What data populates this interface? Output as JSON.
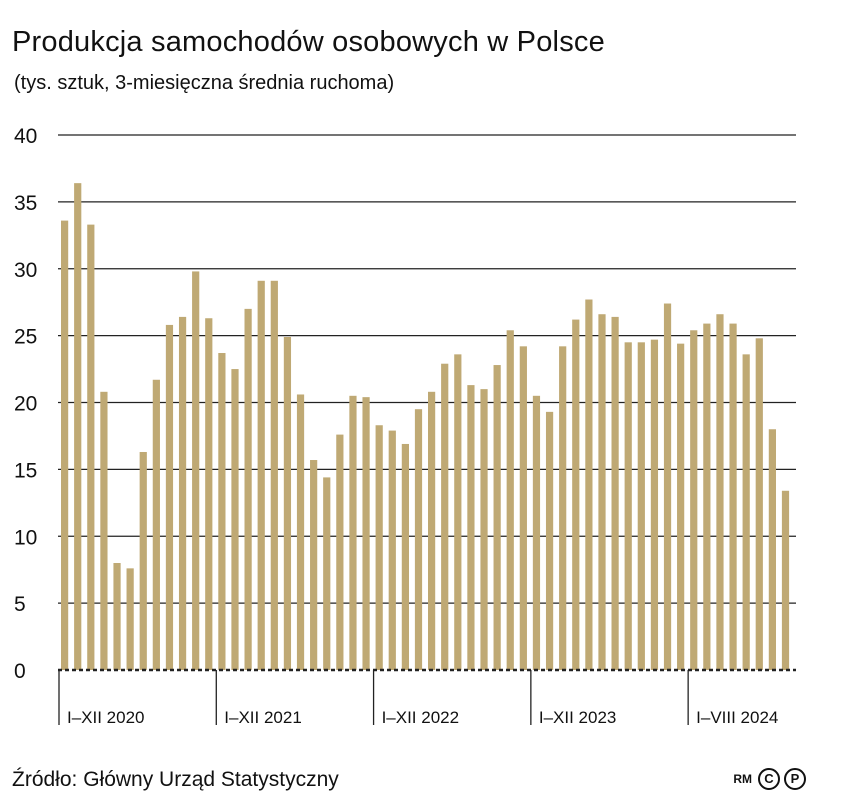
{
  "title": "Produkcja samochodów osobowych w Polsce",
  "subtitle": "(tys. sztuk, 3-miesięczna średnia ruchoma)",
  "source": "Źródło: Główny Urząd Statystyczny",
  "logo": {
    "rm": "RM",
    "c": "C",
    "p": "P"
  },
  "colors": {
    "bar": "#BFA974",
    "grid": "#222222",
    "text": "#111111"
  },
  "chart_data": {
    "type": "bar",
    "ylim": [
      0,
      40
    ],
    "yticks": [
      0,
      5,
      10,
      15,
      20,
      25,
      30,
      35,
      40
    ],
    "grid": true,
    "groups": [
      {
        "label": "I–XII 2020",
        "values": [
          33.6,
          36.4,
          33.3,
          20.8,
          8.0,
          7.6,
          16.3,
          21.7,
          25.8,
          26.4,
          29.8,
          26.3
        ]
      },
      {
        "label": "I–XII 2021",
        "values": [
          23.7,
          22.5,
          27.0,
          29.1,
          29.1,
          24.9,
          20.6,
          15.7,
          14.4,
          17.6,
          20.5,
          20.4
        ]
      },
      {
        "label": "I–XII 2022",
        "values": [
          18.3,
          17.9,
          16.9,
          19.5,
          20.8,
          22.9,
          23.6,
          21.3,
          21.0,
          22.8,
          25.4,
          24.2
        ]
      },
      {
        "label": "I–XII 2023",
        "values": [
          20.5,
          19.3,
          24.2,
          26.2,
          27.7,
          26.6,
          26.4,
          24.5,
          24.5,
          24.7,
          27.4,
          24.4
        ]
      },
      {
        "label": "I–VIII 2024",
        "values": [
          25.4,
          25.9,
          26.6,
          25.9,
          23.6,
          24.8,
          18.0,
          13.4
        ]
      }
    ]
  }
}
